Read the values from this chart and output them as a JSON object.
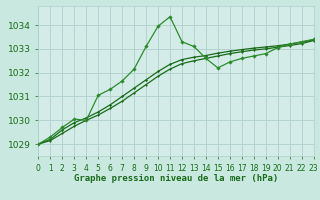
{
  "title": "Graphe pression niveau de la mer (hPa)",
  "background_color": "#c8e8e0",
  "plot_bg_color": "#d4ece8",
  "grid_color": "#b0d0cc",
  "line_color_main": "#1a6b1a",
  "line_color_alt": "#2d8b2d",
  "xlim": [
    0,
    23
  ],
  "ylim": [
    1028.5,
    1034.8
  ],
  "yticks": [
    1029,
    1030,
    1031,
    1032,
    1033,
    1034
  ],
  "xticks": [
    0,
    1,
    2,
    3,
    4,
    5,
    6,
    7,
    8,
    9,
    10,
    11,
    12,
    13,
    14,
    15,
    16,
    17,
    18,
    19,
    20,
    21,
    22,
    23
  ],
  "series1_y": [
    1029.0,
    1029.3,
    1029.7,
    1030.05,
    1030.0,
    1031.05,
    1031.3,
    1031.65,
    1032.15,
    1033.1,
    1033.95,
    1034.35,
    1033.3,
    1033.1,
    1032.6,
    1032.2,
    1032.45,
    1032.6,
    1032.7,
    1032.8,
    1033.05,
    1033.2,
    1033.3,
    1033.4
  ],
  "series2_y": [
    1029.0,
    1029.2,
    1029.6,
    1029.9,
    1030.1,
    1030.35,
    1030.65,
    1031.0,
    1031.35,
    1031.7,
    1032.05,
    1032.35,
    1032.55,
    1032.65,
    1032.72,
    1032.82,
    1032.9,
    1032.97,
    1033.03,
    1033.08,
    1033.13,
    1033.2,
    1033.28,
    1033.38
  ],
  "series3_y": [
    1029.0,
    1029.15,
    1029.45,
    1029.75,
    1030.0,
    1030.22,
    1030.5,
    1030.8,
    1031.15,
    1031.5,
    1031.85,
    1032.15,
    1032.38,
    1032.5,
    1032.6,
    1032.7,
    1032.8,
    1032.88,
    1032.95,
    1033.0,
    1033.07,
    1033.14,
    1033.22,
    1033.35
  ],
  "xlabel_fontsize": 6.5,
  "ytick_fontsize": 6.5,
  "xtick_fontsize": 5.5
}
